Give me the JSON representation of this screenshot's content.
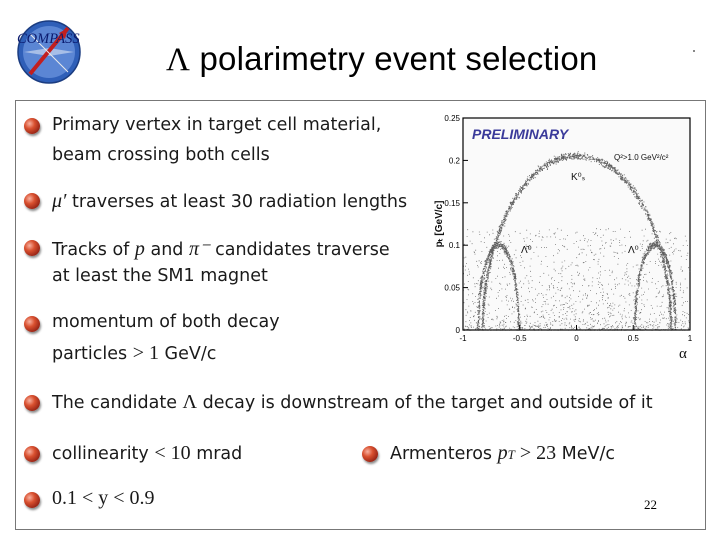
{
  "header": {
    "logo_text": "COMPASS",
    "title_symbol": "Λ",
    "title_text": " polarimetry event selection"
  },
  "bullets": [
    {
      "line1": "Primary vertex in target cell material,",
      "line2": "beam crossing both cells"
    },
    {
      "math": "μ′",
      "text": " traverses at least 30 radiation lengths"
    },
    {
      "line1_a": "Tracks of ",
      "line1_m1": "p",
      "line1_b": " and ",
      "line1_m2": "π⁻",
      "line1_c": " candidates traverse",
      "line2": "at least the SM1 magnet"
    },
    {
      "line1": "momentum of both decay",
      "line2_a": "particles ",
      "line2_m": "> 1",
      "line2_b": " GeV/c"
    },
    {
      "text_a": "The candidate ",
      "text_m": "Λ",
      "text_b": " decay is downstream of the target and outside of it"
    },
    {
      "text_a": "collinearity ",
      "text_m": "< 10",
      "text_b": " mrad"
    },
    {
      "text_a": "Armenteros ",
      "text_m": "p",
      "text_sub": "T",
      "text_m2": " > 23",
      "text_b": " MeV/c"
    },
    {
      "text_m": "0.1 < y < 0.9"
    }
  ],
  "page_number": "22",
  "chart_data": {
    "type": "scatter",
    "title": "PRELIMINARY",
    "xlabel": "α",
    "ylabel": "pₜ [GeV/c]",
    "xlim": [
      -1,
      1
    ],
    "ylim": [
      0,
      0.25
    ],
    "xticks": [
      "-1",
      "-0.5",
      "0",
      "0.5",
      "1"
    ],
    "yticks": [
      "0",
      "0.05",
      "0.1",
      "0.15",
      "0.2",
      "0.25"
    ],
    "cut_label": "Q²>1.0 GeV²/c²",
    "annotations": [
      "K⁰ₛ",
      "Λ̄⁰",
      "Λ⁰"
    ],
    "series": [
      {
        "name": "K⁰ₛ",
        "center_alpha": 0.0,
        "radius_alpha": 0.83,
        "max_pt": 0.206
      },
      {
        "name": "Λ̄⁰",
        "center_alpha": -0.69,
        "radius_alpha": 0.18,
        "max_pt": 0.101
      },
      {
        "name": "Λ⁰",
        "center_alpha": 0.69,
        "radius_alpha": 0.18,
        "max_pt": 0.101
      }
    ],
    "colors": {
      "points": "#2b2b2b",
      "preliminary": "#3a3a9a",
      "frame": "#000000"
    }
  }
}
